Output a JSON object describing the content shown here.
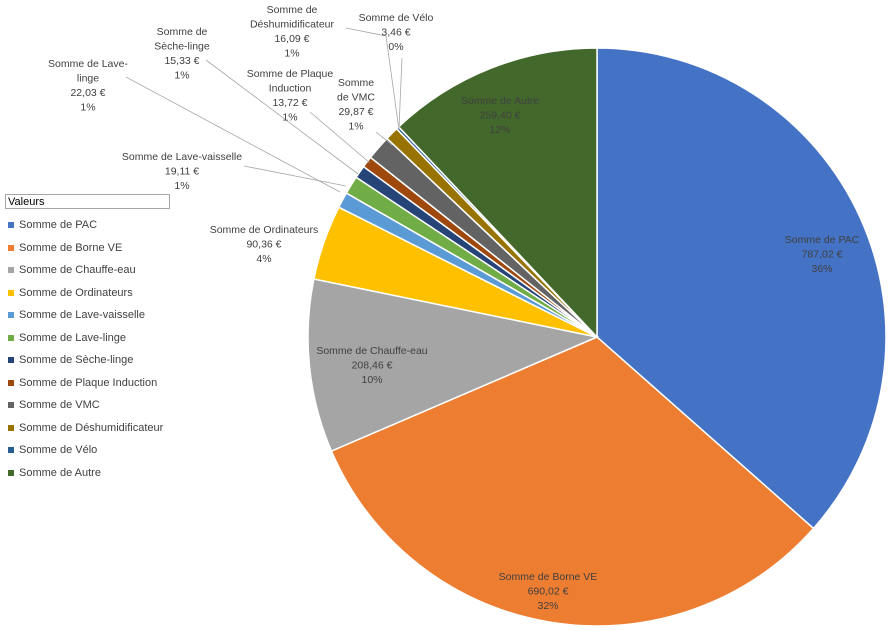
{
  "chart_data": {
    "type": "pie",
    "title": "",
    "legend_title": "Valeurs",
    "legend_position": "left",
    "slices": [
      {
        "name": "Somme de PAC",
        "label_lines": [
          "Somme de PAC"
        ],
        "value": 787.02,
        "value_text": "787,02 €",
        "pct": "36%",
        "color": "#4472C4"
      },
      {
        "name": "Somme de Borne VE",
        "label_lines": [
          "Somme de Borne VE"
        ],
        "value": 690.02,
        "value_text": "690,02 €",
        "pct": "32%",
        "color": "#ED7D31"
      },
      {
        "name": "Somme de Chauffe-eau",
        "label_lines": [
          "Somme de Chauffe-eau"
        ],
        "value": 208.46,
        "value_text": "208,46 €",
        "pct": "10%",
        "color": "#A5A5A5"
      },
      {
        "name": "Somme de Ordinateurs",
        "label_lines": [
          "Somme de Ordinateurs"
        ],
        "value": 90.36,
        "value_text": "90,36 €",
        "pct": "4%",
        "color": "#FFC000"
      },
      {
        "name": "Somme de Lave-vaisselle",
        "label_lines": [
          "Somme de Lave-vaisselle"
        ],
        "value": 19.11,
        "value_text": "19,11 €",
        "pct": "1%",
        "color": "#5B9BD5"
      },
      {
        "name": "Somme de Lave-linge",
        "label_lines": [
          "Somme de Lave-",
          "linge"
        ],
        "value": 22.03,
        "value_text": "22,03 €",
        "pct": "1%",
        "color": "#70AD47"
      },
      {
        "name": "Somme de Sèche-linge",
        "label_lines": [
          "Somme de",
          "Sèche-linge"
        ],
        "value": 15.33,
        "value_text": "15,33 €",
        "pct": "1%",
        "color": "#264478"
      },
      {
        "name": "Somme de Plaque Induction",
        "label_lines": [
          "Somme de Plaque",
          "Induction"
        ],
        "value": 13.72,
        "value_text": "13,72 €",
        "pct": "1%",
        "color": "#9E480E"
      },
      {
        "name": "Somme de VMC",
        "label_lines": [
          "Somme",
          "de VMC"
        ],
        "value": 29.87,
        "value_text": "29,87 €",
        "pct": "1%",
        "color": "#636363"
      },
      {
        "name": "Somme de Déshumidificateur",
        "label_lines": [
          "Somme de",
          "Déshumidificateur"
        ],
        "value": 16.09,
        "value_text": "16,09 €",
        "pct": "1%",
        "color": "#997300"
      },
      {
        "name": "Somme de Vélo",
        "label_lines": [
          "Somme de Vélo"
        ],
        "value": 3.46,
        "value_text": "3,46 €",
        "pct": "0%",
        "color": "#255E91"
      },
      {
        "name": "Somme de Autre",
        "label_lines": [
          "Somme de Autre"
        ],
        "value": 259.4,
        "value_text": "259,40 €",
        "pct": "12%",
        "color": "#43682B"
      }
    ]
  }
}
